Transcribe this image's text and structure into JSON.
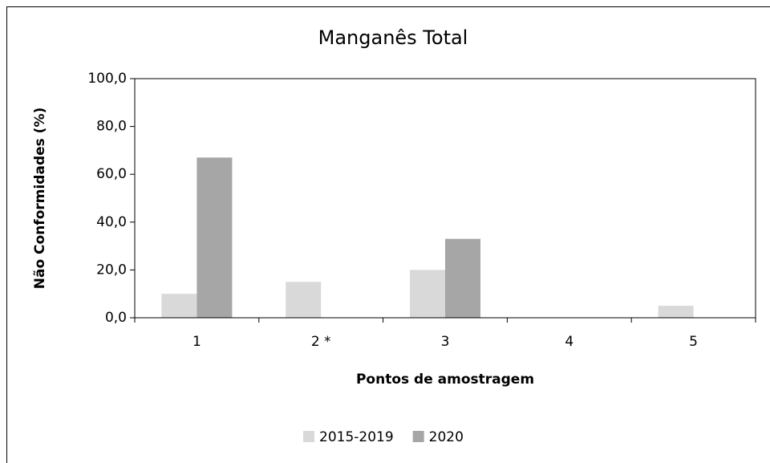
{
  "chart_data": {
    "type": "bar",
    "title": "Manganês Total",
    "x_label": "Pontos de amostragem",
    "y_label": "Não Conformidades (%)",
    "categories": [
      "1",
      "2 *",
      "3",
      "4",
      "5"
    ],
    "series": [
      {
        "name": "2015-2019",
        "color": "#d9d9d9",
        "values": [
          10,
          15,
          20,
          0,
          5
        ]
      },
      {
        "name": "2020",
        "color": "#a6a6a6",
        "values": [
          67,
          0,
          33,
          0,
          0
        ]
      }
    ],
    "ylim": [
      0,
      100
    ],
    "yticks": [
      {
        "value": 0,
        "label": "0,0"
      },
      {
        "value": 20,
        "label": "20,0"
      },
      {
        "value": 40,
        "label": "40,0"
      },
      {
        "value": 60,
        "label": "60,0"
      },
      {
        "value": 80,
        "label": "80,0"
      },
      {
        "value": 100,
        "label": "100,0"
      }
    ],
    "legend": "bottom",
    "grid": false
  }
}
